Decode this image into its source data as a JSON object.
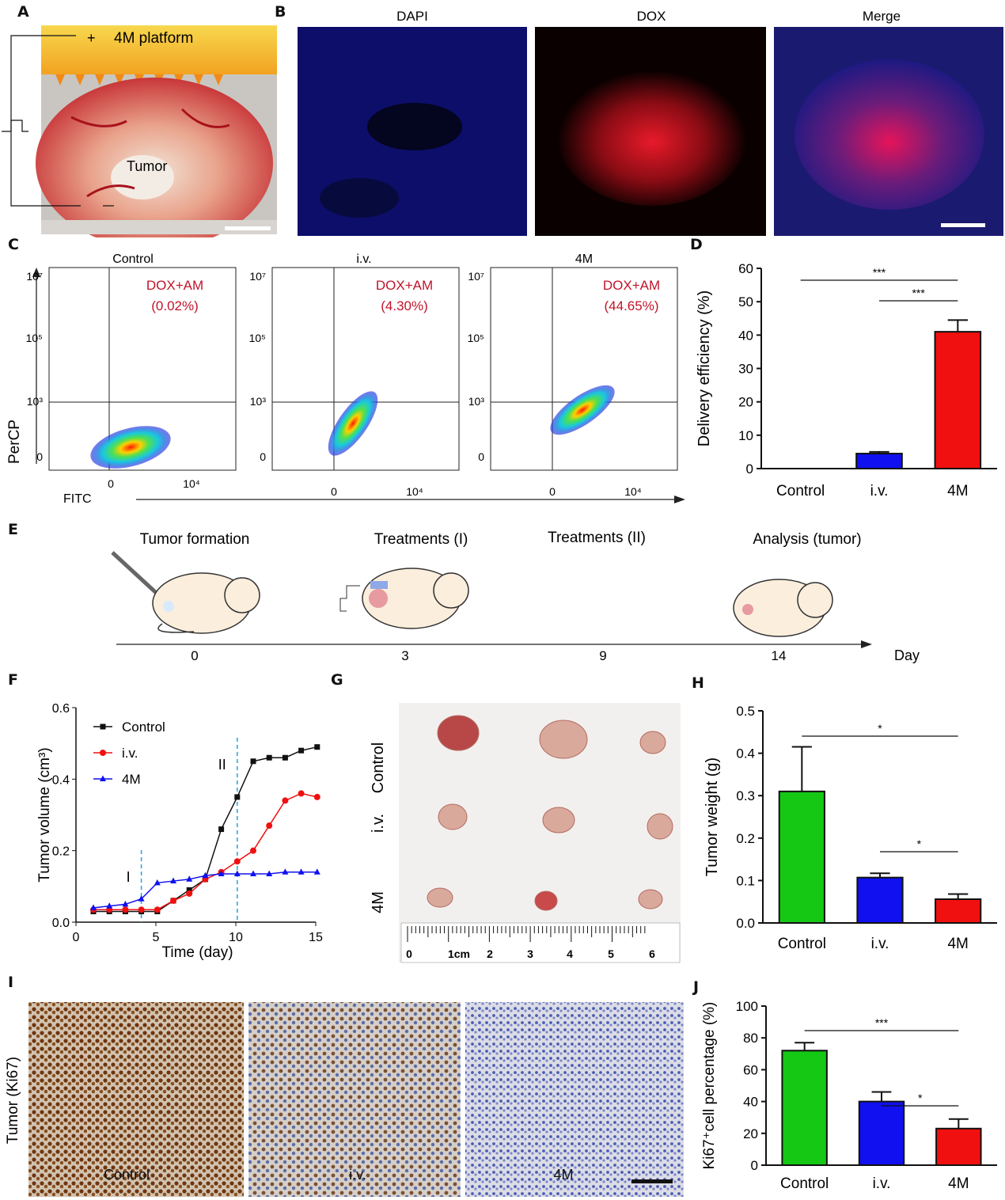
{
  "panels": {
    "A": "A",
    "B": "B",
    "C": "C",
    "D": "D",
    "E": "E",
    "F": "F",
    "G": "G",
    "H": "H",
    "I": "I",
    "J": "J"
  },
  "panel_a": {
    "platform_label": "4M platform",
    "plus_sign": "+",
    "tumor_label": "Tumor",
    "minus_sign": "−"
  },
  "panel_b": {
    "titles": [
      "DAPI",
      "DOX",
      "Merge"
    ]
  },
  "panel_c": {
    "ylabel": "PerCP",
    "xlabel": "FITC",
    "yticks": [
      "10⁷",
      "10⁵",
      "10³",
      "0"
    ],
    "xticks": [
      "0",
      "10⁴"
    ],
    "plots": [
      {
        "title": "Control",
        "gate_label": "DOX+AM",
        "percent": "(0.02%)"
      },
      {
        "title": "i.v.",
        "gate_label": "DOX+AM",
        "percent": "(4.30%)"
      },
      {
        "title": "4M",
        "gate_label": "DOX+AM",
        "percent": "(44.65%)"
      }
    ]
  },
  "panel_e": {
    "steps": [
      "Tumor formation",
      "Treatments (I)",
      "Treatments (II)",
      "Analysis (tumor)"
    ],
    "days": [
      "0",
      "3",
      "9",
      "14"
    ],
    "axis_label": "Day"
  },
  "panel_g": {
    "rows": [
      "Control",
      "i.v.",
      "4M"
    ],
    "ruler_labels": [
      "0",
      "1cm",
      "2",
      "3",
      "4",
      "5",
      "6"
    ]
  },
  "panel_i": {
    "ylabel": "Tumor (Ki67)",
    "columns": [
      "Control",
      "i.v.",
      "4M"
    ]
  },
  "colors": {
    "control": "#14c814",
    "iv": "#1010f0",
    "fm": "#f01010",
    "flow_label": "#c0142a",
    "fitc_axis": "#222222"
  },
  "chart_data": [
    {
      "id": "D",
      "type": "bar",
      "categories": [
        "Control",
        "i.v.",
        "4M"
      ],
      "values": [
        0,
        4.5,
        41
      ],
      "errors": [
        0,
        0.5,
        3.5
      ],
      "ylabel": "Delivery efficiency (%)",
      "ylim": [
        0,
        60
      ],
      "yticks": [
        "0",
        "10",
        "20",
        "30",
        "40",
        "50",
        "60"
      ],
      "significance": [
        {
          "from": "Control",
          "to": "4M",
          "label": "***"
        },
        {
          "from": "i.v.",
          "to": "4M",
          "label": "***"
        }
      ]
    },
    {
      "id": "F",
      "type": "line",
      "x": [
        0,
        1,
        2,
        3,
        4,
        5,
        6,
        7,
        8,
        9,
        10,
        11,
        12,
        13,
        14
      ],
      "series": [
        {
          "name": "Control",
          "values": [
            0.03,
            0.03,
            0.03,
            0.03,
            0.03,
            0.06,
            0.09,
            0.12,
            0.26,
            0.35,
            0.45,
            0.46,
            0.46,
            0.48,
            0.49
          ]
        },
        {
          "name": "i.v.",
          "values": [
            0.035,
            0.035,
            0.035,
            0.035,
            0.035,
            0.06,
            0.08,
            0.12,
            0.14,
            0.17,
            0.2,
            0.27,
            0.34,
            0.36,
            0.35
          ]
        },
        {
          "name": "4M",
          "values": [
            0.04,
            0.045,
            0.05,
            0.065,
            0.11,
            0.115,
            0.12,
            0.13,
            0.135,
            0.135,
            0.135,
            0.135,
            0.14,
            0.14,
            0.14
          ]
        }
      ],
      "xlabel": "Time (day)",
      "ylabel": "Tumor volume (cm³)",
      "xlim": [
        0,
        15
      ],
      "ylim": [
        0,
        0.6
      ],
      "xticks": [
        "0",
        "5",
        "10",
        "15"
      ],
      "yticks": [
        "0.0",
        "0.2",
        "0.4",
        "0.6"
      ],
      "markers": [
        {
          "x": 3,
          "label": "I"
        },
        {
          "x": 9,
          "label": "II"
        }
      ]
    },
    {
      "id": "H",
      "type": "bar",
      "categories": [
        "Control",
        "i.v.",
        "4M"
      ],
      "values": [
        0.31,
        0.107,
        0.056
      ],
      "errors": [
        0.105,
        0.01,
        0.012
      ],
      "ylabel": "Tumor weight (g)",
      "ylim": [
        0,
        0.5
      ],
      "yticks": [
        "0.0",
        "0.1",
        "0.2",
        "0.3",
        "0.4",
        "0.5"
      ],
      "significance": [
        {
          "from": "Control",
          "to": "4M",
          "label": "*"
        },
        {
          "from": "i.v.",
          "to": "4M",
          "label": "*"
        }
      ]
    },
    {
      "id": "J",
      "type": "bar",
      "categories": [
        "Control",
        "i.v.",
        "4M"
      ],
      "values": [
        72,
        40,
        23
      ],
      "errors": [
        5,
        6,
        6
      ],
      "ylabel": "Ki67⁺cell percentage (%)",
      "ylim": [
        0,
        100
      ],
      "yticks": [
        "0",
        "20",
        "40",
        "60",
        "80",
        "100"
      ],
      "significance": [
        {
          "from": "Control",
          "to": "4M",
          "label": "***"
        },
        {
          "from": "i.v.",
          "to": "4M",
          "label": "*"
        }
      ]
    }
  ]
}
